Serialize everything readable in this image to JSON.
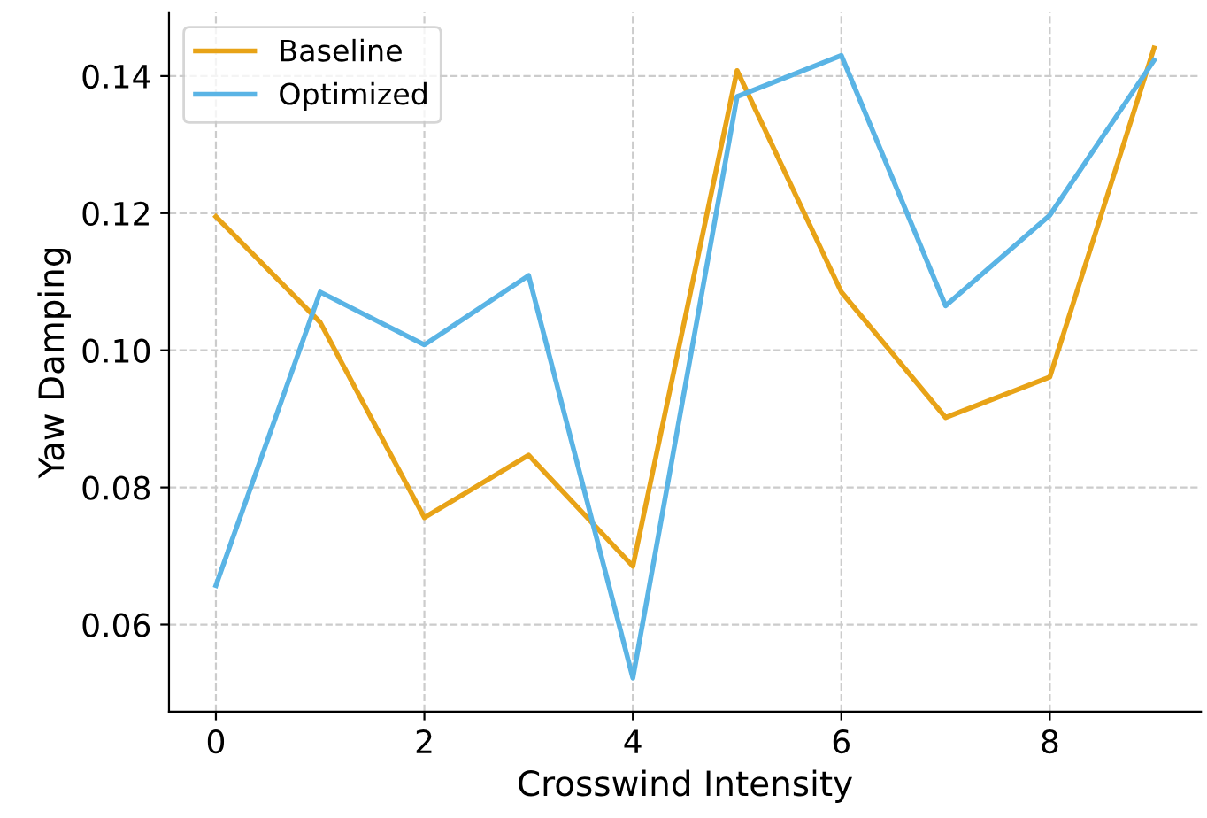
{
  "chart_data": {
    "type": "line",
    "xlabel": "Crosswind Intensity",
    "ylabel": "Yaw Damping",
    "x": [
      0,
      1,
      2,
      3,
      4,
      5,
      6,
      7,
      8,
      9
    ],
    "series": [
      {
        "name": "Baseline",
        "color": "#e8a317",
        "values": [
          0.1195,
          0.1041,
          0.0756,
          0.0847,
          0.0685,
          0.1408,
          0.1085,
          0.0902,
          0.0961,
          0.1441
        ]
      },
      {
        "name": "Optimized",
        "color": "#5ab4e5",
        "values": [
          0.0657,
          0.1085,
          0.1008,
          0.1109,
          0.0522,
          0.137,
          0.143,
          0.1065,
          0.1197,
          0.1423
        ]
      }
    ],
    "xlim": [
      -0.45,
      9.45
    ],
    "ylim": [
      0.0473,
      0.1493
    ],
    "xticks": [
      0,
      2,
      4,
      6,
      8
    ],
    "yticks": [
      {
        "value": 0.06,
        "label": "0.06"
      },
      {
        "value": 0.08,
        "label": "0.08"
      },
      {
        "value": 0.1,
        "label": "0.10"
      },
      {
        "value": 0.12,
        "label": "0.12"
      },
      {
        "value": 0.14,
        "label": "0.14"
      }
    ],
    "grid": true,
    "legend": "top left",
    "line_style": "solid",
    "marker": "none"
  }
}
